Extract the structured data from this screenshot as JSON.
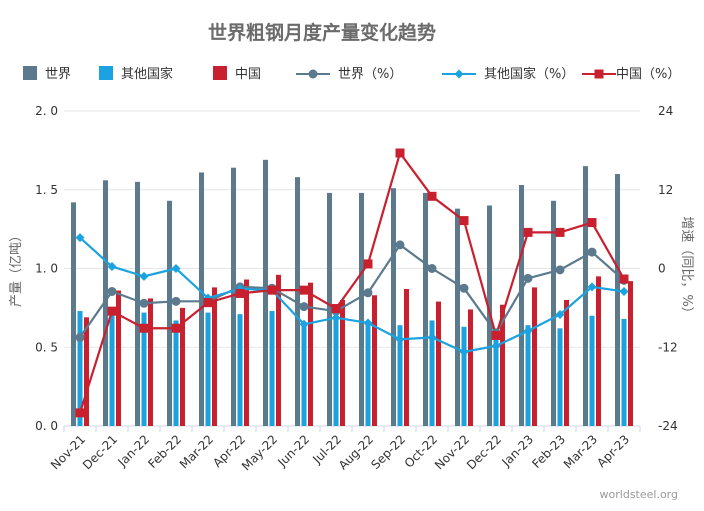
{
  "chart_data": {
    "type": "bar",
    "title": "世界粗钢月度产量变化趋势",
    "categories": [
      "Nov-21",
      "Dec-21",
      "Jan-22",
      "Feb-22",
      "Mar-22",
      "Apr-22",
      "May-22",
      "Jun-22",
      "Jul-22",
      "Aug-22",
      "Sep-22",
      "Oct-22",
      "Nov-22",
      "Dec-22",
      "Jan-23",
      "Feb-23",
      "Mar-23",
      "Apr-23"
    ],
    "ylabel_left": "产量（亿吨）",
    "ylabel_right": "增速（同比，%）",
    "ylim_left": [
      0,
      2
    ],
    "ylim_right": [
      -24,
      24
    ],
    "left_ticks": [
      "2. 0",
      "1. 5",
      "1. 0",
      "0. 5",
      "0. 0"
    ],
    "left_tick_values": [
      2.0,
      1.5,
      1.0,
      0.5,
      0.0
    ],
    "right_ticks": [
      "24",
      "12",
      "0",
      "-12",
      "-24"
    ],
    "right_tick_values": [
      24,
      12,
      0,
      -12,
      -24
    ],
    "grid": true,
    "legend_position": "top",
    "series": [
      {
        "name": "世界",
        "kind": "bar",
        "axis": "left",
        "color": "#5b7a8e",
        "values": [
          1.42,
          1.56,
          1.55,
          1.43,
          1.61,
          1.64,
          1.69,
          1.58,
          1.48,
          1.48,
          1.51,
          1.48,
          1.38,
          1.4,
          1.53,
          1.43,
          1.65,
          1.6
        ]
      },
      {
        "name": "其他国家",
        "kind": "bar",
        "axis": "left",
        "color": "#1aa3e0",
        "values": [
          0.73,
          0.72,
          0.72,
          0.67,
          0.72,
          0.71,
          0.73,
          0.66,
          0.7,
          0.65,
          0.64,
          0.67,
          0.63,
          0.62,
          0.64,
          0.62,
          0.7,
          0.68
        ]
      },
      {
        "name": "中国",
        "kind": "bar",
        "axis": "left",
        "color": "#c8202e",
        "values": [
          0.69,
          0.86,
          0.81,
          0.75,
          0.88,
          0.93,
          0.96,
          0.91,
          0.8,
          0.83,
          0.87,
          0.79,
          0.74,
          0.77,
          0.88,
          0.8,
          0.95,
          0.92
        ]
      },
      {
        "name": "世界（%）",
        "kind": "line",
        "axis": "right",
        "color": "#5b7a8e",
        "marker": "circle",
        "values": [
          -10.5,
          -3.5,
          -5.3,
          -5.0,
          -5.0,
          -2.8,
          -3.0,
          -5.8,
          -6.5,
          -3.7,
          3.6,
          0.0,
          -3.0,
          -9.8,
          -1.5,
          -0.2,
          2.5,
          -1.8
        ]
      },
      {
        "name": "其他国家（%）",
        "kind": "line",
        "axis": "right",
        "color": "#1aa3e0",
        "marker": "diamond",
        "values": [
          4.7,
          0.3,
          -1.2,
          0.0,
          -4.5,
          -3.1,
          -3.3,
          -8.5,
          -7.5,
          -8.3,
          -10.8,
          -10.5,
          -12.7,
          -11.8,
          -9.5,
          -7.0,
          -2.8,
          -3.5
        ]
      },
      {
        "name": "中国（%）",
        "kind": "line",
        "axis": "right",
        "color": "#c8202e",
        "marker": "square",
        "values": [
          -22.0,
          -6.5,
          -9.1,
          -9.1,
          -5.2,
          -3.8,
          -3.3,
          -3.3,
          -6.1,
          0.7,
          17.6,
          11.0,
          7.3,
          -10.2,
          5.5,
          5.5,
          7.0,
          -1.6
        ]
      }
    ],
    "source": "worldsteel.org"
  }
}
